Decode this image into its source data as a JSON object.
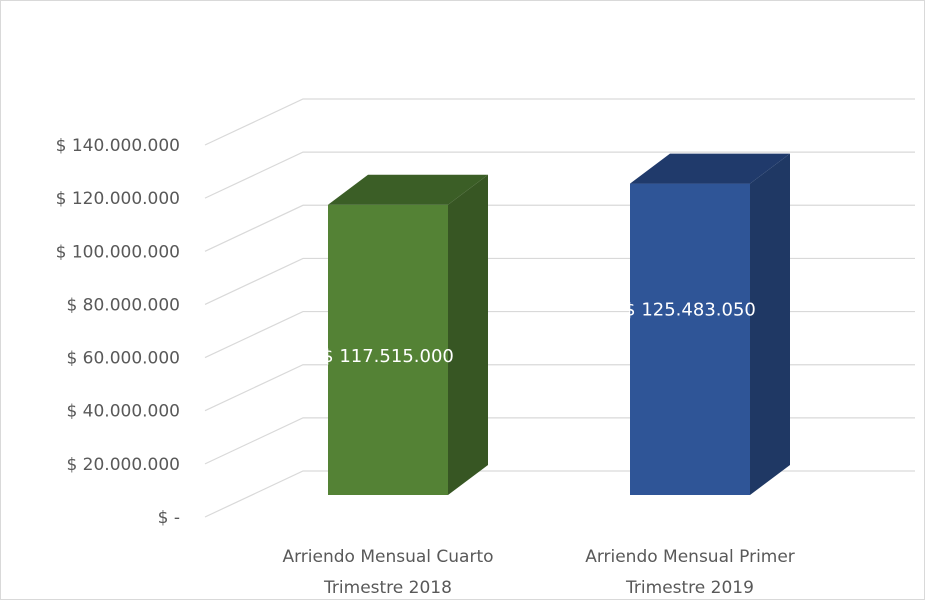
{
  "chart_data": {
    "type": "bar",
    "title": "",
    "xlabel": "",
    "ylabel": "",
    "categories": [
      [
        "Arriendo Mensual Cuarto",
        "Trimestre 2018"
      ],
      [
        "Arriendo Mensual Primer",
        "Trimestre 2019"
      ]
    ],
    "values": [
      117515000,
      125483050
    ],
    "data_labels": [
      "$ 117.515.000",
      "$ 125.483.050"
    ],
    "ylim": [
      0,
      140000000
    ],
    "y_ticks": [
      0,
      20000000,
      40000000,
      60000000,
      80000000,
      100000000,
      120000000,
      140000000
    ],
    "y_tick_labels": [
      "$ -",
      "$ 20.000.000",
      "$ 40.000.000",
      "$ 60.000.000",
      "$ 80.000.000",
      "$ 100.000.000",
      "$ 120.000.000",
      "$ 140.000.000"
    ],
    "style": "3d-column",
    "grid": true,
    "legend": "none",
    "colors": {
      "bar_front": [
        "#548235",
        "#2f5597"
      ],
      "bar_side": [
        "#375623",
        "#1f3864"
      ],
      "bar_top": [
        "#3b5e26",
        "#203a6b"
      ],
      "grid": "#d9d9d9",
      "text": "#595959",
      "data_label": "#ffffff"
    }
  }
}
